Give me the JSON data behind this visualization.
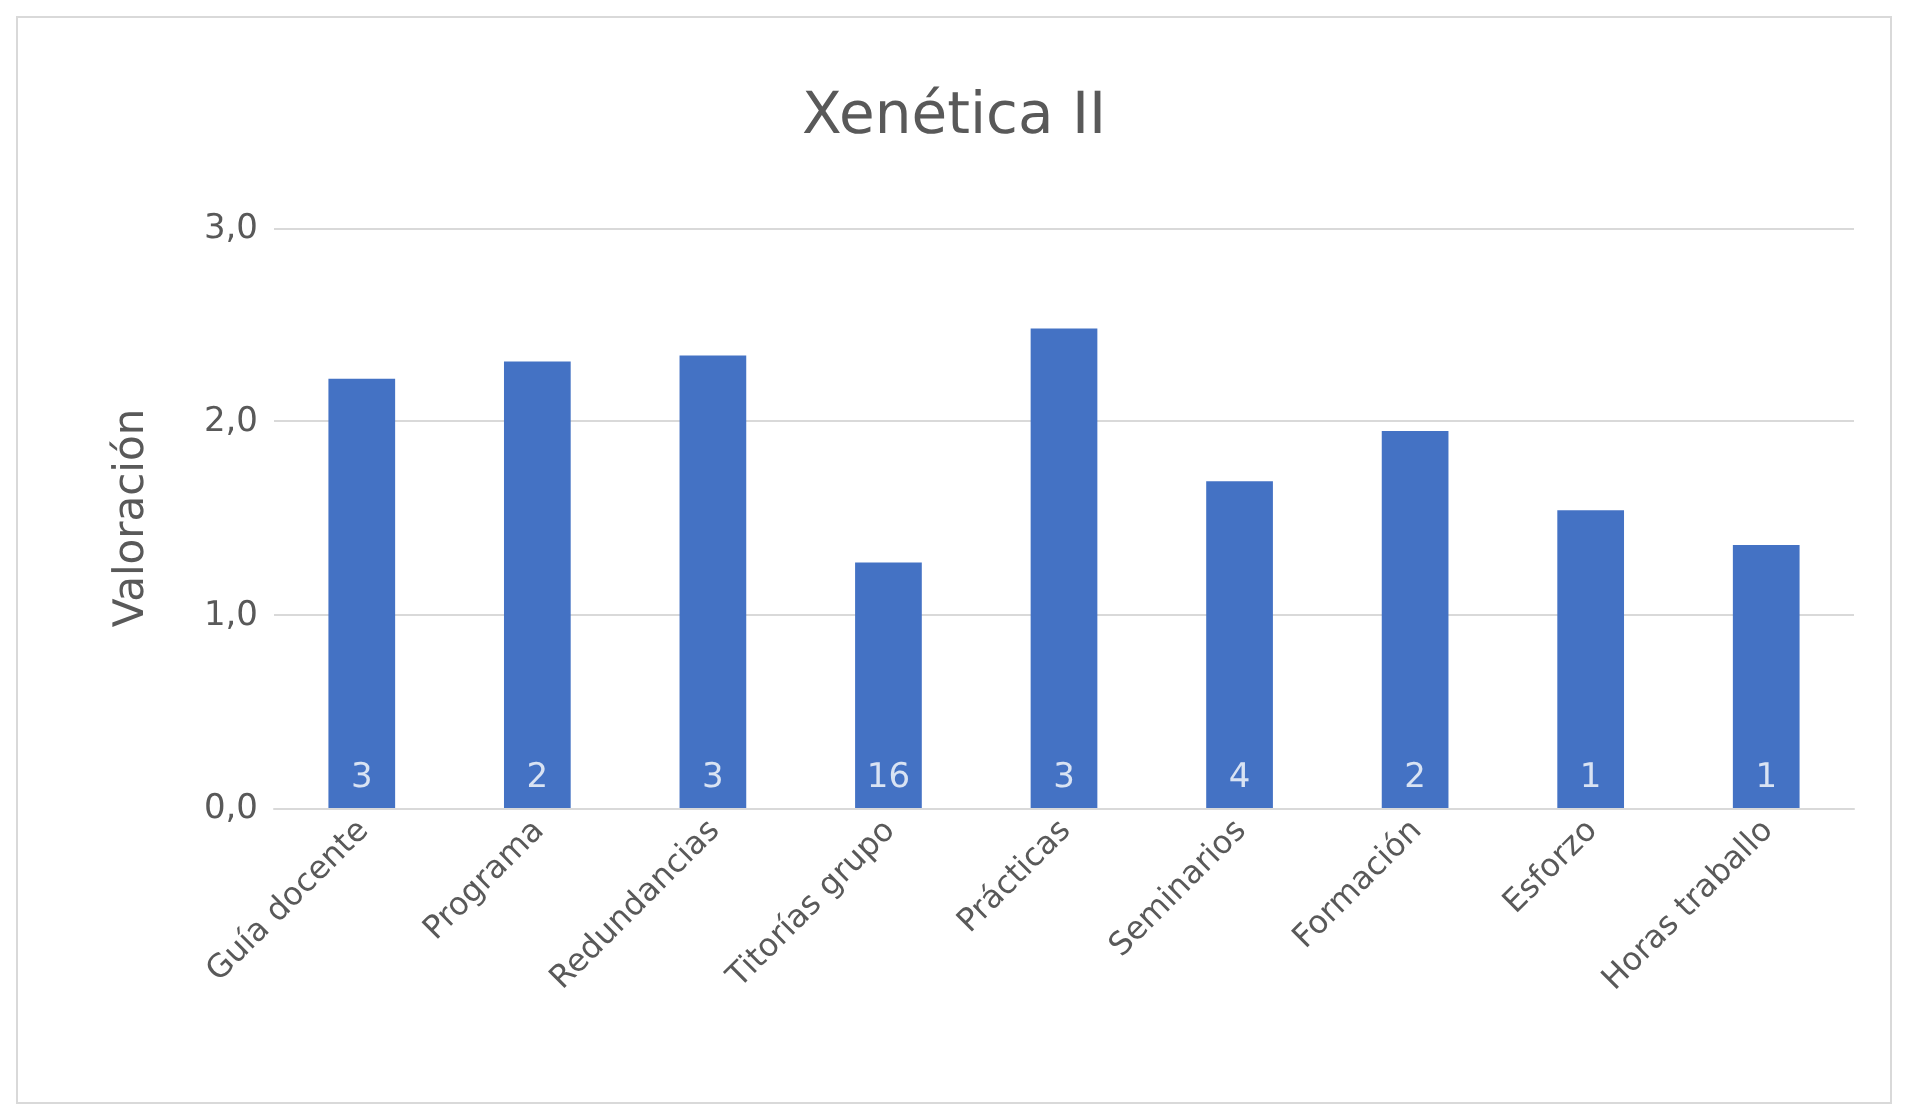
{
  "chart_data": {
    "type": "bar",
    "title": "Xenética II",
    "ylabel": "Valoración",
    "categories": [
      "Guía docente",
      "Programa",
      "Redundancias",
      "Titorías grupo",
      "Prácticas",
      "Seminarios",
      "Formación",
      "Esforzo",
      "Horas traballo"
    ],
    "values": [
      2.22,
      2.31,
      2.34,
      1.27,
      2.48,
      1.69,
      1.95,
      1.54,
      1.36
    ],
    "annotations": [
      {
        "text": "3",
        "x": "Guía docente",
        "y": 0
      },
      {
        "text": "2",
        "x": "Programa",
        "y": 0
      },
      {
        "text": "3",
        "x": "Redundancias",
        "y": 0
      },
      {
        "text": "16",
        "x": "Titorías grupo",
        "y": 0
      },
      {
        "text": "3",
        "x": "Prácticas",
        "y": 0
      },
      {
        "text": "4",
        "x": "Seminarios",
        "y": 0
      },
      {
        "text": "2",
        "x": "Formación",
        "y": 0
      },
      {
        "text": "1",
        "x": "Esforzo",
        "y": 0
      },
      {
        "text": "1",
        "x": "Horas traballo",
        "y": 0
      }
    ],
    "color": "#4472c4",
    "ylim": [
      0,
      3
    ],
    "yticks": [
      {
        "value": 0,
        "label": "0,0"
      },
      {
        "value": 1,
        "label": "1,0"
      },
      {
        "value": 2,
        "label": "2,0"
      },
      {
        "value": 3,
        "label": "3,0"
      }
    ],
    "grid": "y"
  }
}
